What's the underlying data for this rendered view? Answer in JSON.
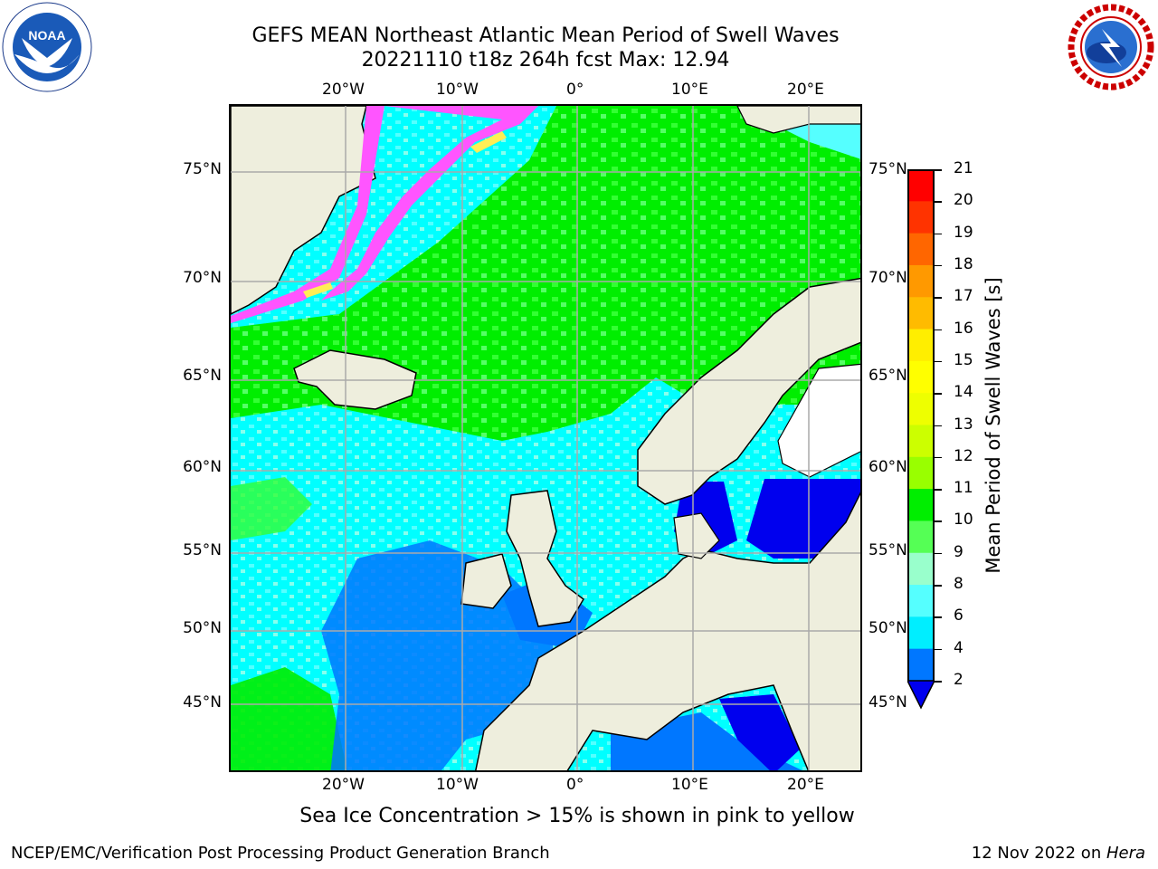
{
  "title_line1": "GEFS MEAN Northeast Atlantic Mean Period of Swell Waves",
  "title_line2": "20221110 t18z 264h fcst   Max: 12.94",
  "logos": {
    "left": "noaa-logo",
    "right": "nws-logo",
    "right_text": "NATIONAL WEATHER SERVICE"
  },
  "map": {
    "lon_labels_top": [
      "20°W",
      "10°W",
      "0°",
      "10°E",
      "20°E"
    ],
    "lon_labels_bottom": [
      "20°W",
      "10°W",
      "0°",
      "10°E",
      "20°E"
    ],
    "lat_labels": [
      "75°N",
      "70°N",
      "65°N",
      "60°N",
      "55°N",
      "50°N",
      "45°N"
    ],
    "colors": {
      "land": "#eeeedd",
      "ice_pink": "#ff55ff",
      "ice_yellow": "#ffee55",
      "gridlines": "#aaaaaa"
    }
  },
  "colorbar": {
    "title": "Mean Period of Swell Waves [s]",
    "ticks": [
      "21",
      "20",
      "19",
      "18",
      "17",
      "16",
      "15",
      "14",
      "13",
      "12",
      "11",
      "10",
      "9",
      "8",
      "6",
      "4",
      "2"
    ],
    "colors": [
      "#ff0000",
      "#ff3300",
      "#ff6600",
      "#ff9900",
      "#ffbb00",
      "#ffee00",
      "#ffff00",
      "#eeff00",
      "#ccff00",
      "#99ff00",
      "#00ee00",
      "#55ff55",
      "#99ffcc",
      "#55ffff",
      "#00eeff",
      "#0077ff",
      "#0000ee"
    ]
  },
  "ice_note": "Sea Ice Concentration > 15% is shown in pink to yellow",
  "footer_left": "NCEP/EMC/Verification Post Processing Product Generation Branch",
  "footer_right_date": "12 Nov 2022 on ",
  "footer_right_machine": "Hera"
}
